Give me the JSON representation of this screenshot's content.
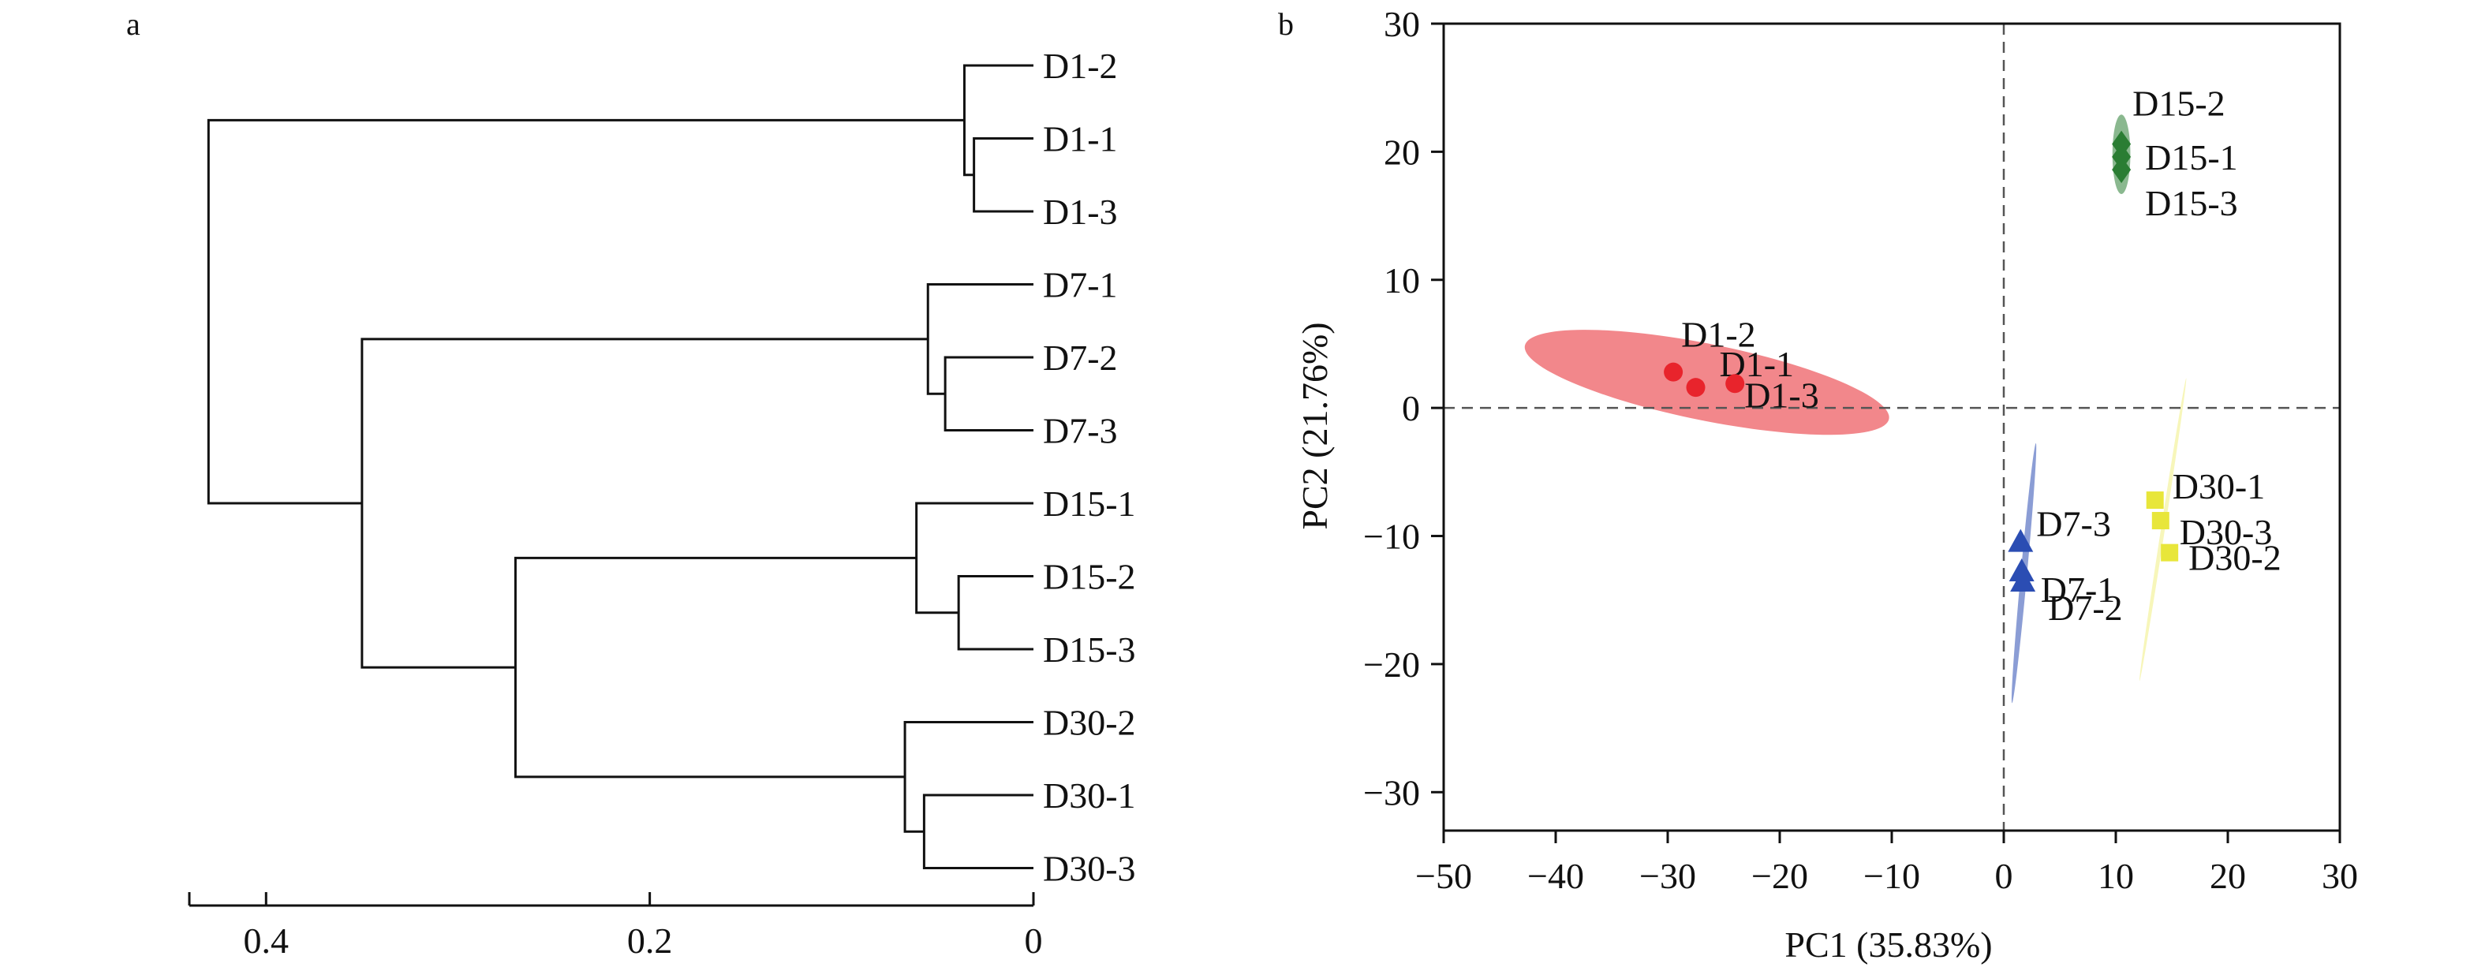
{
  "panels": {
    "a_label": "a",
    "b_label": "b"
  },
  "colors": {
    "D1": "#e8242c",
    "D7": "#2b4db3",
    "D15": "#2a7d33",
    "D30": "#e8e63a",
    "line": "#111111",
    "zero_line": "#555555"
  },
  "chart_data": [
    {
      "type": "dendrogram",
      "panel": "a",
      "leaves": [
        "D1-2",
        "D1-1",
        "D1-3",
        "D7-1",
        "D7-2",
        "D7-3",
        "D15-1",
        "D15-2",
        "D15-3",
        "D30-2",
        "D30-1",
        "D30-3"
      ],
      "merges": [
        {
          "left": "D1-1",
          "right": "D1-3",
          "height": 0.031
        },
        {
          "left": "D1-2",
          "right": "D1-1|D1-3",
          "height": 0.036
        },
        {
          "left": "D7-2",
          "right": "D7-3",
          "height": 0.046
        },
        {
          "left": "D7-1",
          "right": "D7-2|D7-3",
          "height": 0.055
        },
        {
          "left": "D15-2",
          "right": "D15-3",
          "height": 0.039
        },
        {
          "left": "D15-1",
          "right": "D15-2|D15-3",
          "height": 0.061
        },
        {
          "left": "D30-1",
          "right": "D30-3",
          "height": 0.057
        },
        {
          "left": "D30-2",
          "right": "D30-1|D30-3",
          "height": 0.067
        },
        {
          "left": "D15",
          "right": "D30",
          "height": 0.27
        },
        {
          "left": "D7",
          "right": "D15|D30",
          "height": 0.35
        },
        {
          "left": "D1",
          "right": "D7|D15|D30",
          "height": 0.43
        }
      ],
      "xlim": [
        0.44,
        0
      ],
      "ticks": [
        0.4,
        0.2,
        0
      ],
      "tick_labels": [
        "0.4",
        "0.2",
        "0"
      ]
    },
    {
      "type": "scatter",
      "panel": "b",
      "xlabel": "PC1 (35.83%)",
      "ylabel": "PC2 (21.76%)",
      "xlim": [
        -50,
        30
      ],
      "ylim": [
        -33,
        30
      ],
      "xticks": [
        -50,
        -40,
        -30,
        -20,
        -10,
        0,
        10,
        20,
        30
      ],
      "xtick_labels": [
        "−50",
        "−40",
        "−30",
        "−20",
        "−10",
        "0",
        "10",
        "20",
        "30"
      ],
      "yticks": [
        -30,
        -20,
        -10,
        0,
        10,
        20,
        30
      ],
      "ytick_labels": [
        "−30",
        "−20",
        "−10",
        "0",
        "10",
        "20",
        "30"
      ],
      "series": [
        {
          "group": "D1",
          "marker": "circle",
          "points": [
            {
              "label": "D1-2",
              "x": -29.5,
              "y": 2.8
            },
            {
              "label": "D1-1",
              "x": -27.5,
              "y": 1.6
            },
            {
              "label": "D1-3",
              "x": -24.0,
              "y": 1.9
            }
          ],
          "ellipse": {
            "cx": -26.5,
            "cy": 2.0,
            "rx": 16.5,
            "ry": 3.0,
            "angle_deg": -10
          }
        },
        {
          "group": "D7",
          "marker": "triangle",
          "points": [
            {
              "label": "D7-3",
              "x": 1.5,
              "y": -10.5
            },
            {
              "label": "D7-1",
              "x": 1.6,
              "y": -12.8
            },
            {
              "label": "D7-2",
              "x": 1.7,
              "y": -13.6
            }
          ],
          "ellipse": {
            "cx": 1.8,
            "cy": -12.9,
            "rx": 10.2,
            "ry": 0.28,
            "angle_deg": 84
          }
        },
        {
          "group": "D15",
          "marker": "diamond",
          "points": [
            {
              "label": "D15-2",
              "x": 10.5,
              "y": 20.6
            },
            {
              "label": "D15-1",
              "x": 10.5,
              "y": 19.6
            },
            {
              "label": "D15-3",
              "x": 10.5,
              "y": 18.6
            }
          ],
          "ellipse": {
            "cx": 10.5,
            "cy": 19.8,
            "rx": 0.8,
            "ry": 3.1,
            "angle_deg": 0
          }
        },
        {
          "group": "D30",
          "marker": "square",
          "points": [
            {
              "label": "D30-1",
              "x": 13.5,
              "y": -7.2
            },
            {
              "label": "D30-3",
              "x": 14.0,
              "y": -8.8
            },
            {
              "label": "D30-2",
              "x": 14.8,
              "y": -11.3
            }
          ],
          "ellipse": {
            "cx": 14.2,
            "cy": -9.5,
            "rx": 12.0,
            "ry": 0.15,
            "angle_deg": 80
          }
        }
      ]
    }
  ]
}
